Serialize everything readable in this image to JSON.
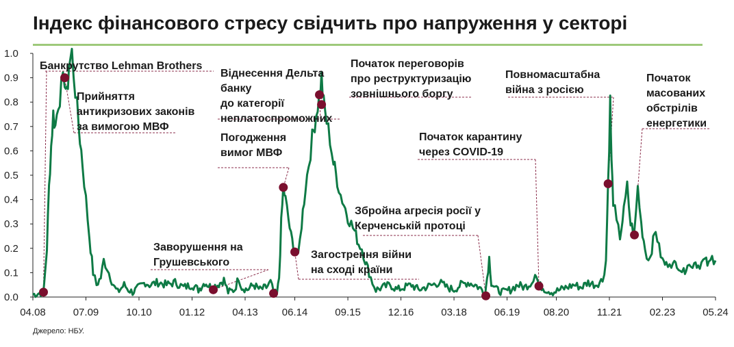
{
  "title": "Індекс фінансового стресу свідчить про напруження у секторі",
  "source": "Джерело: НБУ.",
  "colors": {
    "rule": "#9dc97a",
    "line": "#0e7a45",
    "marker": "#7a0f2e",
    "leader": "#8b2d4b",
    "axis": "#222222"
  },
  "chart_data": {
    "type": "line",
    "title": "Індекс фінансового стресу свідчить про напруження у секторі",
    "xlabel": "",
    "ylabel": "",
    "xlim": [
      2008.25,
      2024.33
    ],
    "ylim": [
      0,
      1.0
    ],
    "x_ticks": [
      {
        "label": "04.08",
        "x": 2008.25
      },
      {
        "label": "07.09",
        "x": 2009.5
      },
      {
        "label": "10.10",
        "x": 2010.75
      },
      {
        "label": "01.12",
        "x": 2012.0
      },
      {
        "label": "04.13",
        "x": 2013.25
      },
      {
        "label": "06.14",
        "x": 2014.42
      },
      {
        "label": "09.15",
        "x": 2015.67
      },
      {
        "label": "12.16",
        "x": 2016.92
      },
      {
        "label": "03.18",
        "x": 2018.17
      },
      {
        "label": "06.19",
        "x": 2019.42
      },
      {
        "label": "08.20",
        "x": 2020.58
      },
      {
        "label": "11.21",
        "x": 2021.83
      },
      {
        "label": "02.23",
        "x": 2023.08
      },
      {
        "label": "05.24",
        "x": 2024.33
      }
    ],
    "y_ticks": [
      "0.0",
      "0.1",
      "0.2",
      "0.3",
      "0.4",
      "0.5",
      "0.6",
      "0.7",
      "0.8",
      "0.9",
      "1.0"
    ],
    "series": [
      {
        "values": [
          [
            2008.25,
            0.01
          ],
          [
            2008.5,
            0.02
          ],
          [
            2008.58,
            0.2
          ],
          [
            2008.63,
            0.45
          ],
          [
            2008.68,
            0.62
          ],
          [
            2008.73,
            0.75
          ],
          [
            2008.78,
            0.7
          ],
          [
            2008.85,
            0.8
          ],
          [
            2008.92,
            0.85
          ],
          [
            2009.0,
            0.9
          ],
          [
            2009.05,
            0.82
          ],
          [
            2009.1,
            0.95
          ],
          [
            2009.17,
            1.0
          ],
          [
            2009.25,
            0.85
          ],
          [
            2009.33,
            0.7
          ],
          [
            2009.42,
            0.55
          ],
          [
            2009.5,
            0.4
          ],
          [
            2009.58,
            0.25
          ],
          [
            2009.67,
            0.1
          ],
          [
            2009.75,
            0.05
          ],
          [
            2009.85,
            0.08
          ],
          [
            2009.92,
            0.15
          ],
          [
            2010.0,
            0.12
          ],
          [
            2010.08,
            0.08
          ],
          [
            2010.17,
            0.04
          ],
          [
            2010.25,
            0.02
          ],
          [
            2010.4,
            0.05
          ],
          [
            2010.5,
            0.03
          ],
          [
            2010.6,
            0.02
          ],
          [
            2010.75,
            0.04
          ],
          [
            2010.9,
            0.06
          ],
          [
            2011.0,
            0.05
          ],
          [
            2011.2,
            0.06
          ],
          [
            2011.4,
            0.05
          ],
          [
            2011.6,
            0.06
          ],
          [
            2011.8,
            0.04
          ],
          [
            2012.0,
            0.05
          ],
          [
            2012.15,
            0.03
          ],
          [
            2012.3,
            0.06
          ],
          [
            2012.45,
            0.04
          ],
          [
            2012.6,
            0.05
          ],
          [
            2012.75,
            0.07
          ],
          [
            2012.85,
            0.02
          ],
          [
            2013.0,
            0.03
          ],
          [
            2013.1,
            0.08
          ],
          [
            2013.17,
            0.04
          ],
          [
            2013.3,
            0.03
          ],
          [
            2013.45,
            0.05
          ],
          [
            2013.6,
            0.03
          ],
          [
            2013.75,
            0.04
          ],
          [
            2013.85,
            0.06
          ],
          [
            2013.92,
            0.02
          ],
          [
            2014.0,
            0.01
          ],
          [
            2014.05,
            0.08
          ],
          [
            2014.1,
            0.3
          ],
          [
            2014.15,
            0.45
          ],
          [
            2014.2,
            0.4
          ],
          [
            2014.27,
            0.32
          ],
          [
            2014.33,
            0.25
          ],
          [
            2014.42,
            0.19
          ],
          [
            2014.5,
            0.16
          ],
          [
            2014.58,
            0.3
          ],
          [
            2014.67,
            0.45
          ],
          [
            2014.75,
            0.55
          ],
          [
            2014.83,
            0.65
          ],
          [
            2014.92,
            0.75
          ],
          [
            2015.0,
            0.83
          ],
          [
            2015.05,
            0.9
          ],
          [
            2015.1,
            0.79
          ],
          [
            2015.17,
            0.72
          ],
          [
            2015.25,
            0.65
          ],
          [
            2015.33,
            0.55
          ],
          [
            2015.42,
            0.48
          ],
          [
            2015.5,
            0.42
          ],
          [
            2015.58,
            0.38
          ],
          [
            2015.67,
            0.33
          ],
          [
            2015.75,
            0.3
          ],
          [
            2015.83,
            0.27
          ],
          [
            2015.92,
            0.22
          ],
          [
            2016.0,
            0.2
          ],
          [
            2016.08,
            0.15
          ],
          [
            2016.17,
            0.1
          ],
          [
            2016.25,
            0.06
          ],
          [
            2016.33,
            0.03
          ],
          [
            2016.5,
            0.04
          ],
          [
            2016.67,
            0.05
          ],
          [
            2016.83,
            0.03
          ],
          [
            2017.0,
            0.04
          ],
          [
            2017.17,
            0.05
          ],
          [
            2017.33,
            0.03
          ],
          [
            2017.5,
            0.04
          ],
          [
            2017.67,
            0.05
          ],
          [
            2017.83,
            0.06
          ],
          [
            2018.0,
            0.04
          ],
          [
            2018.17,
            0.03
          ],
          [
            2018.33,
            0.05
          ],
          [
            2018.5,
            0.06
          ],
          [
            2018.67,
            0.05
          ],
          [
            2018.83,
            0.03
          ],
          [
            2018.9,
            0.01
          ],
          [
            2018.95,
            0.08
          ],
          [
            2019.0,
            0.16
          ],
          [
            2019.05,
            0.06
          ],
          [
            2019.17,
            0.03
          ],
          [
            2019.33,
            0.02
          ],
          [
            2019.5,
            0.03
          ],
          [
            2019.67,
            0.05
          ],
          [
            2019.83,
            0.04
          ],
          [
            2020.0,
            0.06
          ],
          [
            2020.08,
            0.1
          ],
          [
            2020.17,
            0.05
          ],
          [
            2020.33,
            0.03
          ],
          [
            2020.5,
            0.02
          ],
          [
            2020.67,
            0.03
          ],
          [
            2020.83,
            0.04
          ],
          [
            2021.0,
            0.05
          ],
          [
            2021.17,
            0.04
          ],
          [
            2021.33,
            0.06
          ],
          [
            2021.5,
            0.05
          ],
          [
            2021.67,
            0.07
          ],
          [
            2021.75,
            0.15
          ],
          [
            2021.8,
            0.47
          ],
          [
            2021.85,
            0.8
          ],
          [
            2021.88,
            0.55
          ],
          [
            2021.92,
            0.4
          ],
          [
            2022.0,
            0.3
          ],
          [
            2022.08,
            0.25
          ],
          [
            2022.17,
            0.35
          ],
          [
            2022.25,
            0.45
          ],
          [
            2022.33,
            0.3
          ],
          [
            2022.42,
            0.26
          ],
          [
            2022.5,
            0.45
          ],
          [
            2022.58,
            0.3
          ],
          [
            2022.67,
            0.2
          ],
          [
            2022.75,
            0.15
          ],
          [
            2022.83,
            0.2
          ],
          [
            2022.92,
            0.28
          ],
          [
            2023.0,
            0.2
          ],
          [
            2023.08,
            0.15
          ],
          [
            2023.17,
            0.13
          ],
          [
            2023.25,
            0.15
          ],
          [
            2023.33,
            0.13
          ],
          [
            2023.42,
            0.14
          ],
          [
            2023.5,
            0.12
          ],
          [
            2023.58,
            0.1
          ],
          [
            2023.67,
            0.14
          ],
          [
            2023.75,
            0.12
          ],
          [
            2023.83,
            0.15
          ],
          [
            2023.92,
            0.13
          ],
          [
            2024.0,
            0.14
          ],
          [
            2024.08,
            0.15
          ],
          [
            2024.17,
            0.13
          ],
          [
            2024.25,
            0.16
          ],
          [
            2024.33,
            0.15
          ]
        ]
      }
    ],
    "events": [
      {
        "x": 2008.5,
        "y": 0.02,
        "lines": [
          "Банкрутство Lehman Brothers"
        ]
      },
      {
        "x": 2009.0,
        "y": 0.9,
        "lines": [
          "Прийняття",
          "антикризових законів",
          "за вимогою МВФ"
        ]
      },
      {
        "x": 2012.5,
        "y": 0.03,
        "lines": [
          "Заворушення на",
          "Грушевського"
        ]
      },
      {
        "x": 2013.92,
        "y": 0.015,
        "lines": []
      },
      {
        "x": 2014.15,
        "y": 0.45,
        "lines": [
          "Погодження",
          "вимог МВФ"
        ]
      },
      {
        "x": 2014.42,
        "y": 0.185,
        "lines": [
          "Загострення війни",
          "на сході країни"
        ]
      },
      {
        "x": 2015.0,
        "y": 0.83,
        "lines": [
          "Віднесення Дельта",
          "банку",
          "до категорії",
          "неплатоспроможних"
        ]
      },
      {
        "x": 2015.05,
        "y": 0.79,
        "lines": [
          "Початок переговорів",
          "про реструктуризацію",
          "зовнішнього боргу"
        ]
      },
      {
        "x": 2018.92,
        "y": 0.005,
        "lines": [
          "Збройна агресія росії у",
          "Керченській протоці"
        ]
      },
      {
        "x": 2020.17,
        "y": 0.045,
        "lines": [
          "Початок карантину",
          "через COVID-19"
        ]
      },
      {
        "x": 2021.8,
        "y": 0.465,
        "lines": [
          "Повномасштабна",
          "війна з росією"
        ]
      },
      {
        "x": 2022.42,
        "y": 0.255,
        "lines": [
          "Початок",
          "масованих",
          "обстрілів",
          "енергетики"
        ]
      }
    ]
  }
}
